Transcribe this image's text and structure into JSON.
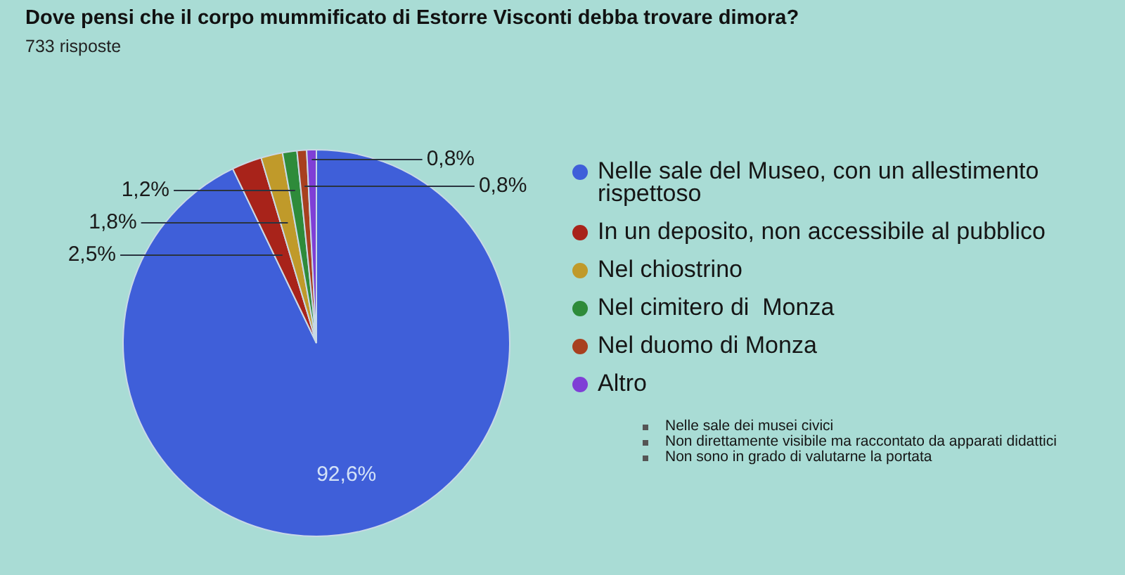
{
  "chart_data": {
    "type": "pie",
    "title": "Dove pensi che il corpo mummificato di Estorre Visconti debba trovare dimora?",
    "subtitle": "733 risposte",
    "categories": [
      "Nelle sale del Museo, con un allestimento rispettoso",
      "In un deposito, non accessibile al pubblico",
      "Nel chiostrino",
      "Nel cimitero di  Monza",
      "Nel duomo di Monza",
      "Altro"
    ],
    "values": [
      92.6,
      2.5,
      1.8,
      1.2,
      0.8,
      0.8
    ],
    "value_labels": [
      "92,6%",
      "2,5%",
      "1,8%",
      "1,2%",
      "0,8%",
      "0,8%"
    ],
    "colors": [
      "#3f5fd9",
      "#a8231a",
      "#c09a2a",
      "#2e8b3a",
      "#a8401f",
      "#7f3fd6"
    ],
    "legend": "right",
    "annotations": [
      "Nelle sale dei musei civici",
      "Non direttamente visibile ma raccontato da apparati didattici",
      "Non sono in grado di valutarne la portata"
    ]
  }
}
